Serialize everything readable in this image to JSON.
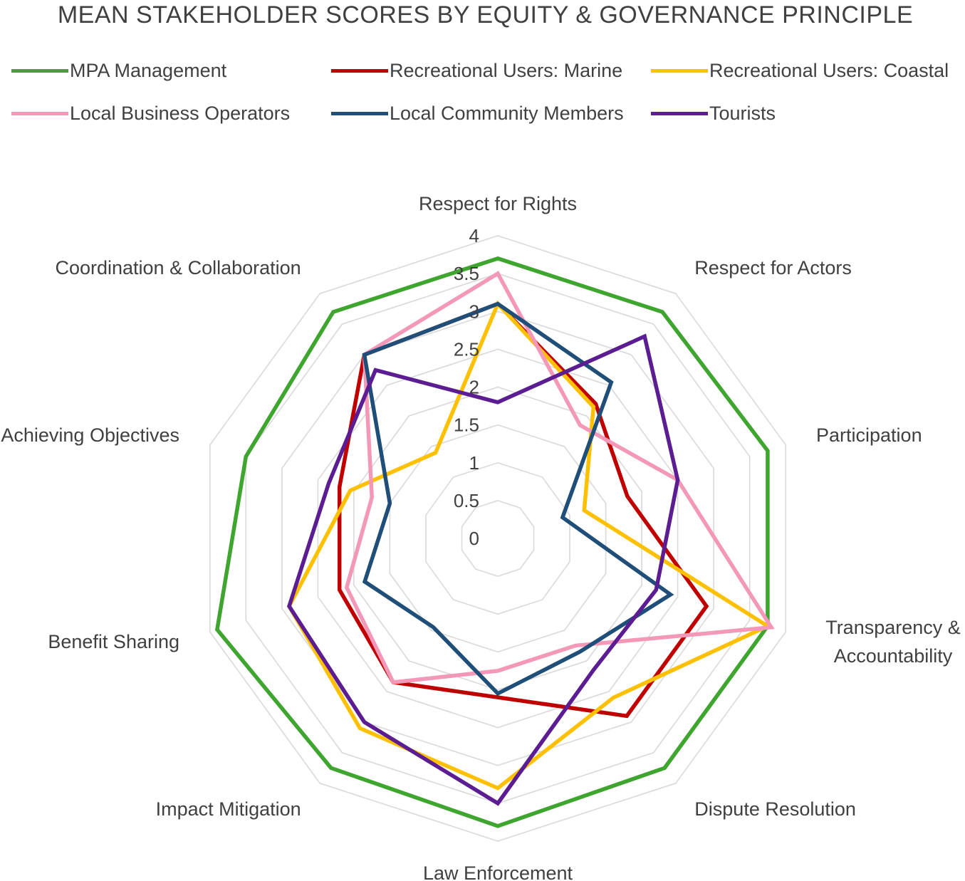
{
  "chart_data": {
    "type": "radar",
    "title": "MEAN STAKEHOLDER SCORES BY EQUITY & GOVERNANCE PRINCIPLE",
    "axes": [
      "Respect for Rights",
      "Respect for Actors",
      "Participation",
      "Transparency & Accountability",
      "Dispute Resolution",
      "Law Enforcement",
      "Impact Mitigation",
      "Benefit Sharing",
      "Achieving Objectives",
      "Coordination & Collaboration"
    ],
    "axis_label_lines": [
      [
        "Respect for Rights"
      ],
      [
        "Respect for Actors"
      ],
      [
        "Participation"
      ],
      [
        "Transparency &",
        "Accountability"
      ],
      [
        "Dispute Resolution"
      ],
      [
        "Law Enforcement"
      ],
      [
        "Impact Mitigation"
      ],
      [
        "Benefit Sharing"
      ],
      [
        "Achieving Objectives"
      ],
      [
        "Coordination & Collaboration"
      ]
    ],
    "rlim": [
      0,
      4
    ],
    "ticks": [
      "0",
      "0.5",
      "1",
      "1.5",
      "2",
      "2.5",
      "3",
      "3.5",
      "4"
    ],
    "grid": true,
    "legend_position": "top",
    "series": [
      {
        "name": "MPA Management",
        "color": "#3ea52e",
        "values": [
          3.7,
          3.7,
          3.75,
          3.75,
          3.75,
          3.8,
          3.75,
          3.9,
          3.5,
          3.7
        ]
      },
      {
        "name": "Recreational Users: Marine",
        "color": "#c00000",
        "values": [
          3.1,
          2.2,
          1.8,
          2.9,
          2.9,
          2.1,
          2.35,
          2.2,
          2.2,
          3.0
        ]
      },
      {
        "name": "Recreational Users: Coastal",
        "color": "#ffc000",
        "values": [
          3.1,
          2.15,
          1.2,
          3.75,
          2.6,
          3.3,
          3.1,
          2.9,
          2.05,
          1.4
        ]
      },
      {
        "name": "Local Business Operators",
        "color": "#f398b8",
        "values": [
          3.5,
          1.85,
          2.5,
          3.8,
          1.75,
          1.75,
          2.35,
          2.1,
          1.75,
          3.0
        ]
      },
      {
        "name": "Local Community Members",
        "color": "#1f4e79",
        "values": [
          3.1,
          2.55,
          0.9,
          2.4,
          1.85,
          2.05,
          1.45,
          1.85,
          1.5,
          3.0
        ]
      },
      {
        "name": "Tourists",
        "color": "#5b1d91",
        "values": [
          1.8,
          3.3,
          2.5,
          2.2,
          2.15,
          3.5,
          3.0,
          2.9,
          2.35,
          2.75
        ]
      }
    ]
  }
}
